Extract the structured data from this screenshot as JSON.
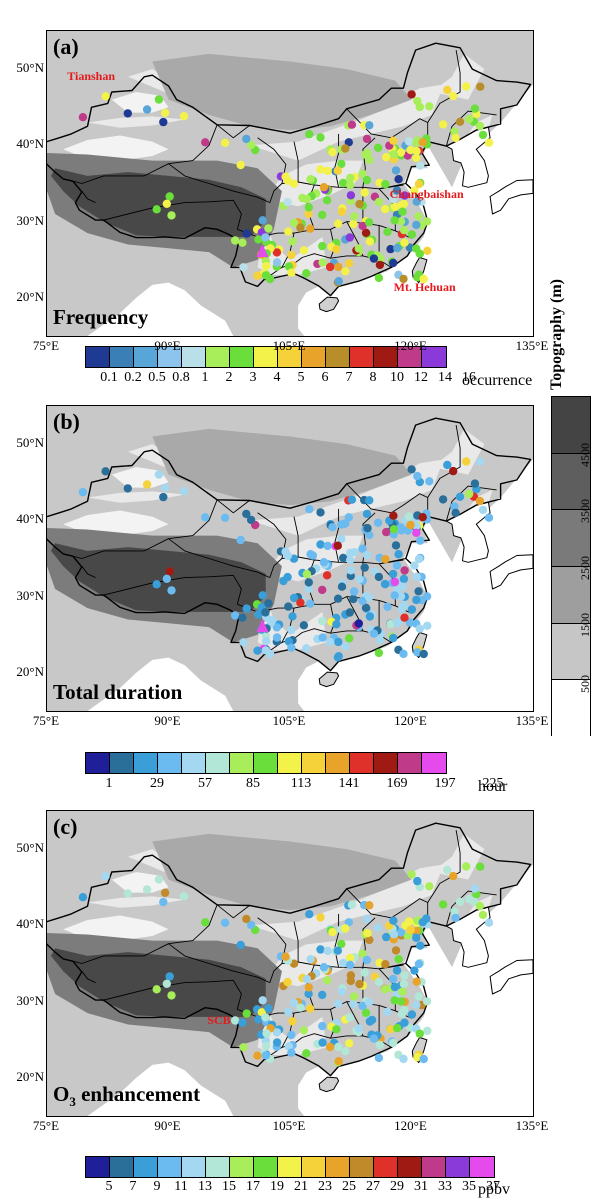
{
  "axes": {
    "lat_labels": [
      "50°N",
      "40°N",
      "30°N",
      "20°N"
    ],
    "lat_values": [
      50,
      40,
      30,
      20
    ],
    "lon_labels": [
      "75°E",
      "90°E",
      "105°E",
      "120°E",
      "135°E"
    ],
    "lon_values": [
      75,
      90,
      105,
      120,
      135
    ],
    "lon_range": [
      75,
      135
    ],
    "lat_range": [
      15,
      55
    ]
  },
  "topography": {
    "title": "Topography (m)",
    "ticks": [
      "4500",
      "3500",
      "2500",
      "1500",
      "500"
    ],
    "tick_values": [
      4500,
      3500,
      2500,
      1500,
      500
    ],
    "colors": [
      "#444444",
      "#5e5e5e",
      "#7a7a7a",
      "#9e9e9e",
      "#c6c6c6",
      "#ffffff"
    ]
  },
  "panels": [
    {
      "label": "(a)",
      "title": "Frequency",
      "unit": "occurrence",
      "colors": [
        "#1f3a93",
        "#3a7fb5",
        "#58a5d8",
        "#8dc4ee",
        "#b9e0e8",
        "#a8ed5a",
        "#6ade3a",
        "#f2f24a",
        "#f6d23a",
        "#e8a42a",
        "#b88e2a",
        "#e0302a",
        "#a01a14",
        "#c03a8a",
        "#8a3ad8"
      ],
      "ticks": [
        "0.1",
        "0.2",
        "0.5",
        "0.8",
        "1",
        "2",
        "3",
        "4",
        "5",
        "6",
        "7",
        "8",
        "10",
        "12",
        "14",
        "16"
      ],
      "annotations": [
        {
          "text": "Tianshan",
          "lon": 81.2,
          "lat": 49.0
        },
        {
          "text": "Changbaishan",
          "lon": 121.0,
          "lat": 33.5
        },
        {
          "text": "Mt. Hehuan",
          "lon": 121.5,
          "lat": 21.3
        }
      ]
    },
    {
      "label": "(b)",
      "title": "Total duration",
      "unit": "hour",
      "colors": [
        "#1f1f99",
        "#2a6f9a",
        "#3a9fd8",
        "#6bbaf0",
        "#a3d8f0",
        "#b2e6d6",
        "#a8ed5a",
        "#6ade3a",
        "#f2f24a",
        "#f6d23a",
        "#e8a42a",
        "#e0302a",
        "#a01a14",
        "#c03a8a",
        "#e54aed"
      ],
      "ticks": [
        "1",
        "29",
        "57",
        "85",
        "113",
        "141",
        "169",
        "197",
        "225"
      ],
      "annotations": []
    },
    {
      "label": "(c)",
      "title": "O3 enhancement",
      "title_main": "O",
      "title_sub": "3",
      "title_rest": " enhancement",
      "unit": "ppbv",
      "colors": [
        "#1f1f99",
        "#2a6f9a",
        "#3a9fd8",
        "#6bbaf0",
        "#a3d8f0",
        "#b2e6d6",
        "#a8ed5a",
        "#6ade3a",
        "#f2f24a",
        "#f6d23a",
        "#e8a42a",
        "#c08a2a",
        "#e0302a",
        "#a01a14",
        "#c03a8a",
        "#8a3ad8",
        "#e54aed"
      ],
      "ticks": [
        "5",
        "7",
        "9",
        "11",
        "13",
        "15",
        "17",
        "19",
        "21",
        "23",
        "25",
        "27",
        "29",
        "31",
        "33",
        "35",
        "37"
      ],
      "annotations": [
        {
          "text": "SCB",
          "lon": 98.5,
          "lat": 27.5
        }
      ]
    }
  ]
}
